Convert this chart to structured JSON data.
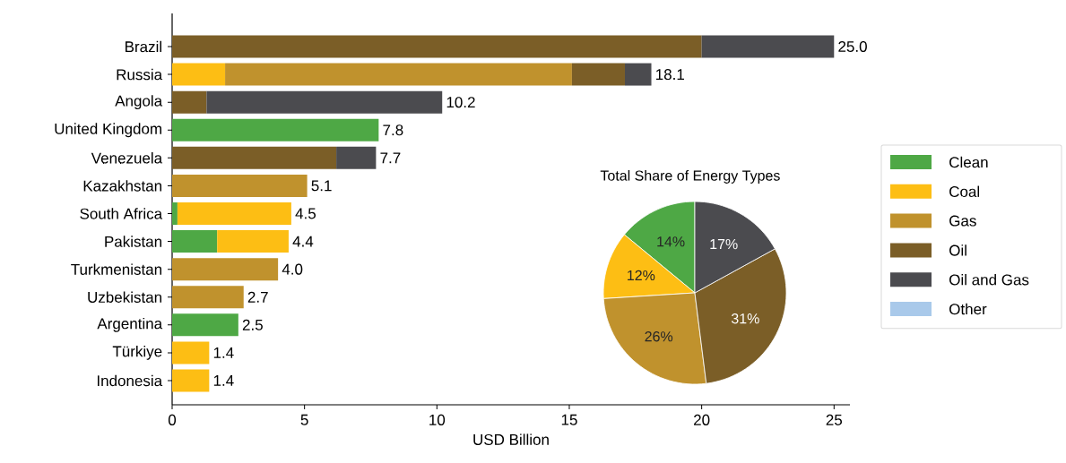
{
  "chart_data": [
    {
      "type": "bar",
      "orientation": "horizontal",
      "stacked": true,
      "categories": [
        "Brazil",
        "Russia",
        "Angola",
        "United Kingdom",
        "Venezuela",
        "Kazakhstan",
        "South Africa",
        "Pakistan",
        "Turkmenistan",
        "Uzbekistan",
        "Argentina",
        "Türkiye",
        "Indonesia"
      ],
      "series": [
        {
          "name": "Clean",
          "color": "#4ea845",
          "values": [
            null,
            null,
            null,
            7.8,
            null,
            null,
            0.2,
            1.7,
            null,
            null,
            2.5,
            null,
            null
          ]
        },
        {
          "name": "Coal",
          "color": "#fdbe14",
          "values": [
            null,
            2.0,
            null,
            null,
            null,
            null,
            4.3,
            2.7,
            null,
            null,
            null,
            1.4,
            1.4
          ]
        },
        {
          "name": "Gas",
          "color": "#c0922d",
          "values": [
            null,
            13.1,
            null,
            null,
            null,
            5.1,
            null,
            null,
            4.0,
            2.7,
            null,
            null,
            null
          ]
        },
        {
          "name": "Oil",
          "color": "#7b5e27",
          "values": [
            20.0,
            2.0,
            1.3,
            null,
            6.2,
            null,
            null,
            null,
            null,
            null,
            null,
            null,
            null
          ]
        },
        {
          "name": "Oil and Gas",
          "color": "#4b4b4f",
          "values": [
            5.0,
            1.0,
            8.9,
            null,
            1.5,
            null,
            null,
            null,
            null,
            null,
            null,
            null,
            null
          ]
        },
        {
          "name": "Other",
          "color": "#a9c9ea",
          "values": [
            null,
            null,
            null,
            null,
            null,
            null,
            null,
            null,
            null,
            null,
            null,
            null,
            null
          ]
        }
      ],
      "totals": [
        "25.0",
        "18.1",
        "10.2",
        "7.8",
        "7.7",
        "5.1",
        "4.5",
        "4.4",
        "4.0",
        "2.7",
        "2.5",
        "1.4",
        "1.4"
      ],
      "xlabel": "USD Billion",
      "xlim": [
        0,
        25.6
      ],
      "xticks": [
        0,
        5,
        10,
        15,
        20,
        25
      ],
      "legend": "right"
    },
    {
      "type": "pie",
      "title": "Total Share of Energy Types",
      "categories": [
        null,
        null,
        null,
        null,
        null
      ],
      "values": [
        14,
        12,
        26,
        31,
        17
      ],
      "colors": [
        "#4ea845",
        "#fdbe14",
        "#c0922d",
        "#7b5e27",
        "#4b4b4f"
      ],
      "value_labels": [
        "14%",
        "12%",
        "26%",
        "31%",
        "17%"
      ]
    }
  ]
}
